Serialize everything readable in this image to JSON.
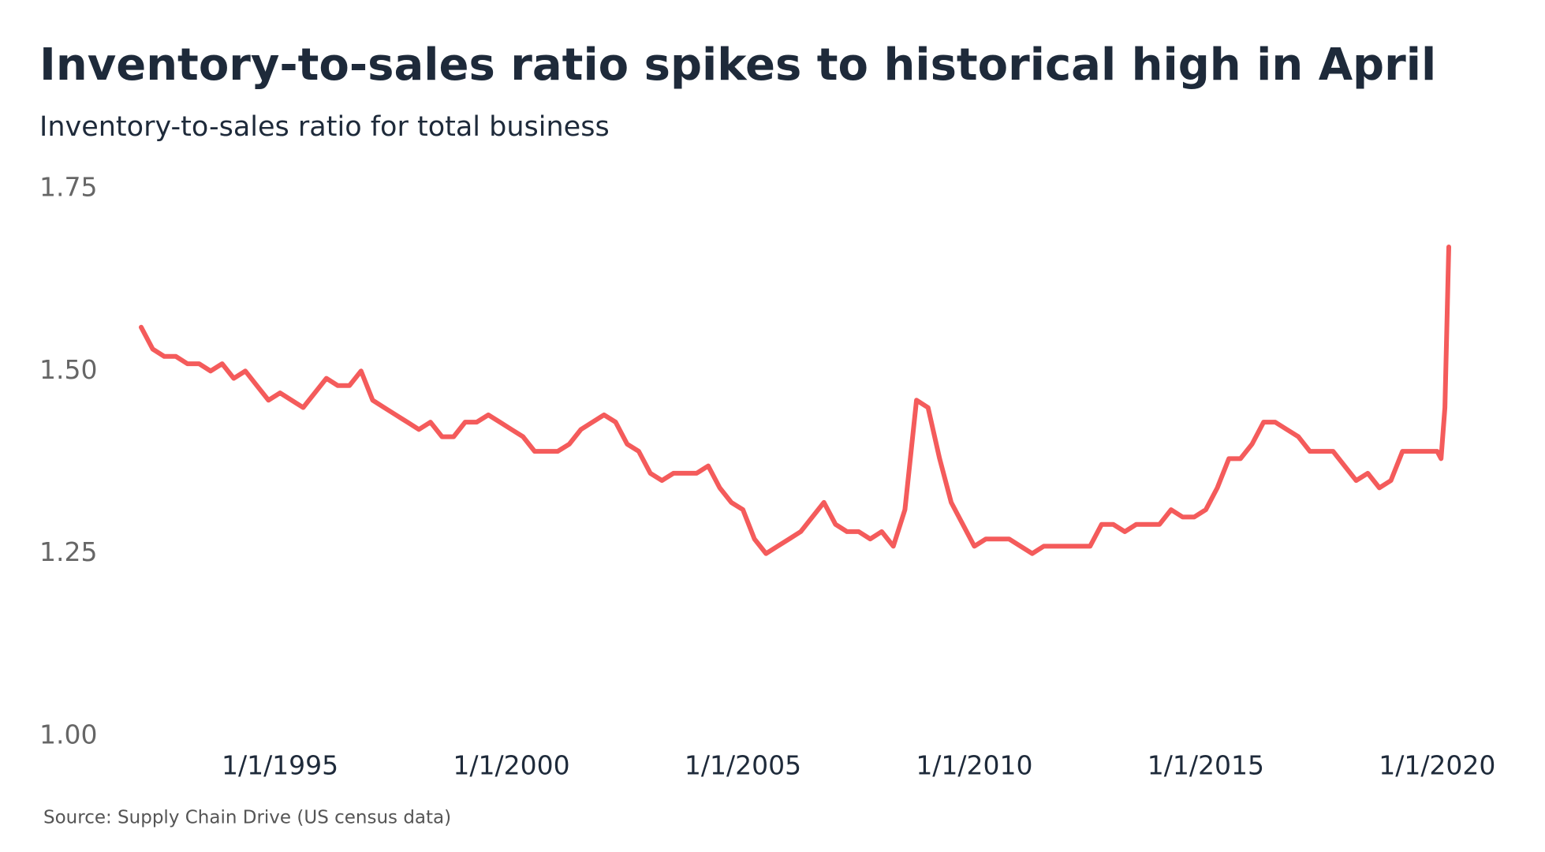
{
  "chart_data": {
    "type": "line",
    "title": "Inventory-to-sales ratio spikes to historical high in April",
    "subtitle": "Inventory-to-sales ratio for total business",
    "source": "Source: Supply Chain Drive (US census data)",
    "color": "#f45b5b",
    "x": [
      "1/1/1992",
      "4/1/1992",
      "7/1/1992",
      "10/1/1992",
      "1/1/1993",
      "4/1/1993",
      "7/1/1993",
      "10/1/1993",
      "1/1/1994",
      "4/1/1994",
      "7/1/1994",
      "10/1/1994",
      "1/1/1995",
      "4/1/1995",
      "7/1/1995",
      "10/1/1995",
      "1/1/1996",
      "4/1/1996",
      "7/1/1996",
      "10/1/1996",
      "1/1/1997",
      "4/1/1997",
      "7/1/1997",
      "10/1/1997",
      "1/1/1998",
      "4/1/1998",
      "7/1/1998",
      "10/1/1998",
      "1/1/1999",
      "4/1/1999",
      "7/1/1999",
      "10/1/1999",
      "1/1/2000",
      "4/1/2000",
      "7/1/2000",
      "10/1/2000",
      "1/1/2001",
      "4/1/2001",
      "7/1/2001",
      "10/1/2001",
      "1/1/2002",
      "4/1/2002",
      "7/1/2002",
      "10/1/2002",
      "1/1/2003",
      "4/1/2003",
      "7/1/2003",
      "10/1/2003",
      "1/1/2004",
      "4/1/2004",
      "7/1/2004",
      "10/1/2004",
      "1/1/2005",
      "4/1/2005",
      "7/1/2005",
      "10/1/2005",
      "1/1/2006",
      "4/1/2006",
      "7/1/2006",
      "10/1/2006",
      "1/1/2007",
      "4/1/2007",
      "7/1/2007",
      "10/1/2007",
      "1/1/2008",
      "4/1/2008",
      "7/1/2008",
      "10/1/2008",
      "1/1/2009",
      "4/1/2009",
      "7/1/2009",
      "10/1/2009",
      "1/1/2010",
      "4/1/2010",
      "7/1/2010",
      "10/1/2010",
      "1/1/2011",
      "4/1/2011",
      "7/1/2011",
      "10/1/2011",
      "1/1/2012",
      "4/1/2012",
      "7/1/2012",
      "10/1/2012",
      "1/1/2013",
      "4/1/2013",
      "7/1/2013",
      "10/1/2013",
      "1/1/2014",
      "4/1/2014",
      "7/1/2014",
      "10/1/2014",
      "1/1/2015",
      "4/1/2015",
      "7/1/2015",
      "10/1/2015",
      "1/1/2016",
      "4/1/2016",
      "7/1/2016",
      "10/1/2016",
      "1/1/2017",
      "4/1/2017",
      "7/1/2017",
      "10/1/2017",
      "1/1/2018",
      "4/1/2018",
      "7/1/2018",
      "10/1/2018",
      "1/1/2019",
      "4/1/2019",
      "7/1/2019",
      "10/1/2019",
      "1/1/2020",
      "2/1/2020",
      "3/1/2020",
      "4/1/2020"
    ],
    "values": [
      1.56,
      1.53,
      1.52,
      1.52,
      1.51,
      1.51,
      1.5,
      1.51,
      1.49,
      1.5,
      1.48,
      1.46,
      1.47,
      1.46,
      1.45,
      1.47,
      1.49,
      1.48,
      1.48,
      1.5,
      1.46,
      1.45,
      1.44,
      1.43,
      1.42,
      1.43,
      1.41,
      1.41,
      1.43,
      1.43,
      1.44,
      1.43,
      1.42,
      1.41,
      1.39,
      1.39,
      1.39,
      1.4,
      1.42,
      1.43,
      1.44,
      1.43,
      1.4,
      1.39,
      1.36,
      1.35,
      1.36,
      1.36,
      1.36,
      1.37,
      1.34,
      1.32,
      1.31,
      1.27,
      1.25,
      1.26,
      1.27,
      1.28,
      1.3,
      1.32,
      1.29,
      1.28,
      1.28,
      1.27,
      1.28,
      1.26,
      1.31,
      1.46,
      1.45,
      1.38,
      1.32,
      1.29,
      1.26,
      1.27,
      1.27,
      1.27,
      1.26,
      1.25,
      1.26,
      1.26,
      1.26,
      1.26,
      1.26,
      1.29,
      1.29,
      1.28,
      1.29,
      1.29,
      1.29,
      1.31,
      1.3,
      1.3,
      1.31,
      1.34,
      1.38,
      1.38,
      1.4,
      1.43,
      1.43,
      1.42,
      1.41,
      1.39,
      1.39,
      1.39,
      1.37,
      1.35,
      1.36,
      1.34,
      1.35,
      1.39,
      1.39,
      1.39,
      1.39,
      1.38,
      1.45,
      1.67
    ],
    "xlim": [
      "1/1/1992",
      "4/1/2020"
    ],
    "xticks": [
      "1/1/1995",
      "1/1/2000",
      "1/1/2005",
      "1/1/2010",
      "1/1/2015",
      "1/1/2020"
    ],
    "ylim": [
      1,
      1.75
    ],
    "yticks": [
      {
        "value": 1,
        "label": "1.00"
      },
      1.25,
      {
        "value": 1.5,
        "label": "1.50"
      },
      1.75
    ],
    "grid": false
  }
}
